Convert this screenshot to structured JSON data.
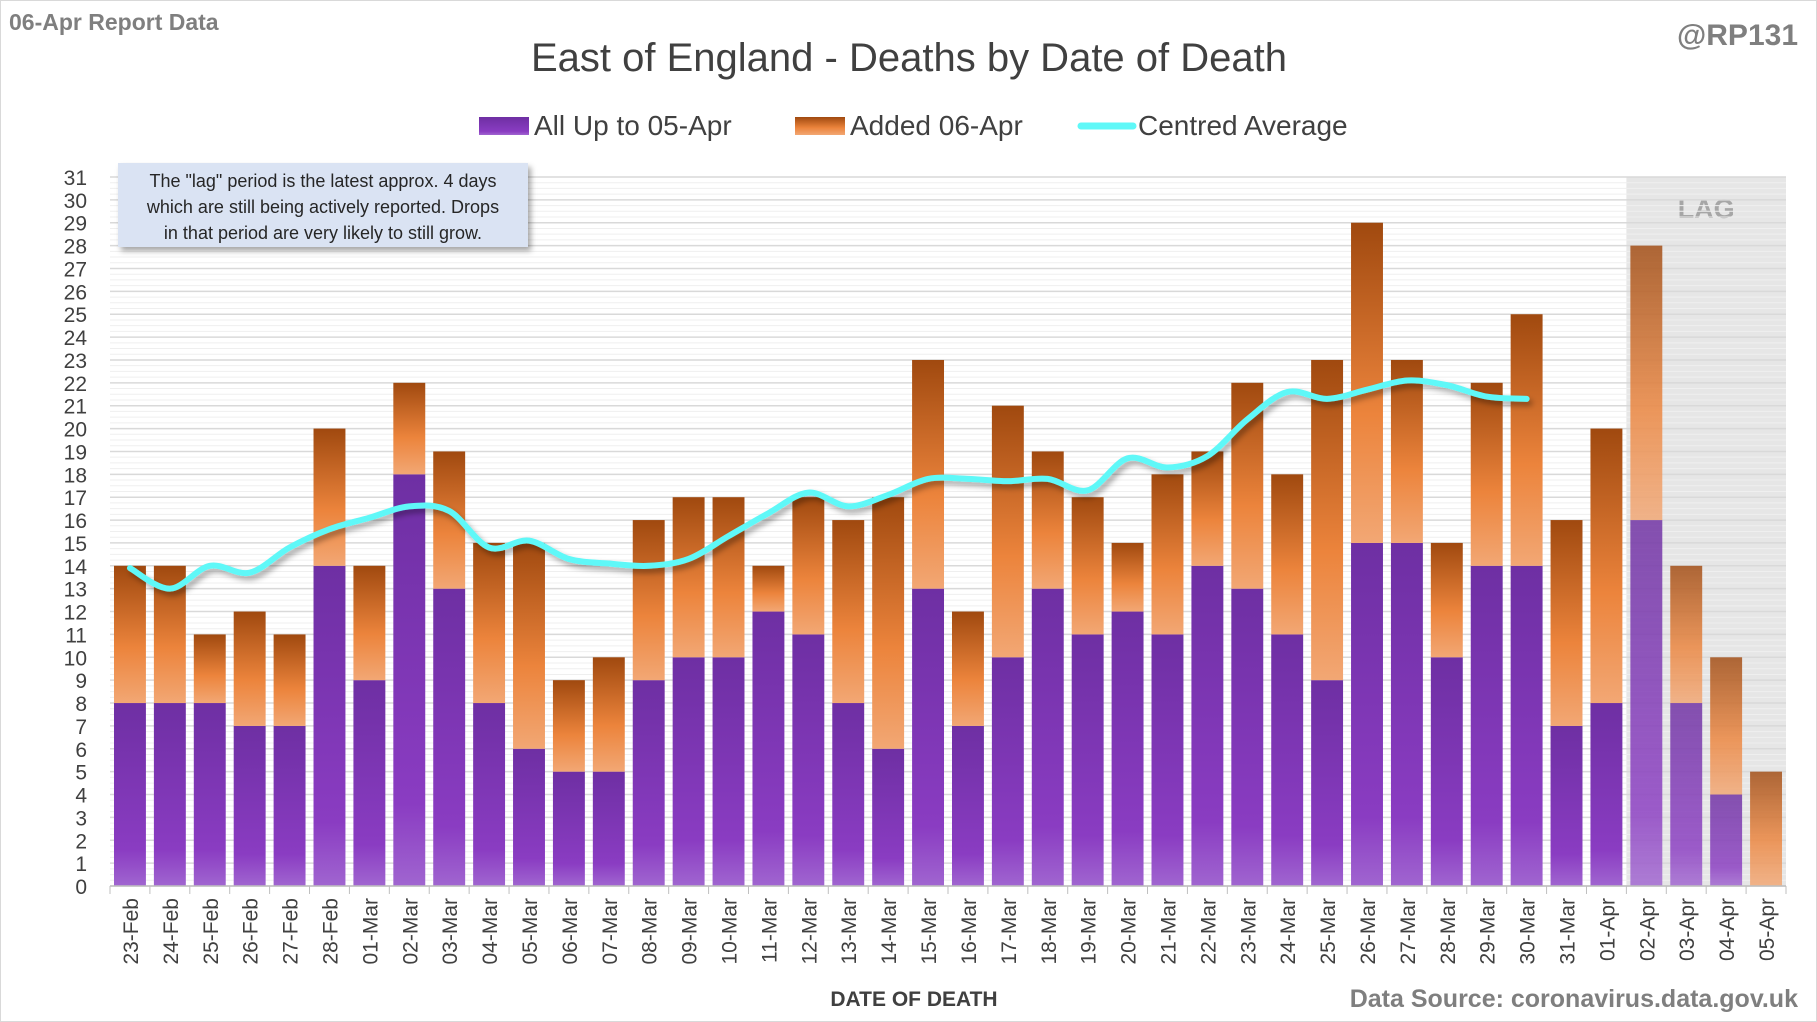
{
  "header": {
    "report_label": "06-Apr Report Data",
    "handle": "@RP131",
    "source": "Data Source: coronavirus.data.gov.uk"
  },
  "annotation": "The \"lag\" period is the latest approx. 4 days which are still being actively reported.  Drops in that period are very likely to still grow.",
  "annotation_lines": [
    "The \"lag\" period is the latest approx. 4 days",
    "which are still being actively reported.  Drops",
    "in that period are very likely to still grow."
  ],
  "lag_label": "LAG",
  "colors": {
    "purple": "#7b35b5",
    "orange": "#e8823a",
    "average": "#5ff8f8",
    "lag_shade": "#e6e6e6"
  },
  "chart_data": {
    "type": "bar",
    "stacked": true,
    "title": "East of England - Deaths by Date of Death",
    "xlabel": "DATE OF DEATH",
    "ylabel": "",
    "ylim": [
      0,
      31
    ],
    "yticks": [
      0,
      1,
      2,
      3,
      4,
      5,
      6,
      7,
      8,
      9,
      10,
      11,
      12,
      13,
      14,
      15,
      16,
      17,
      18,
      19,
      20,
      21,
      22,
      23,
      24,
      25,
      26,
      27,
      28,
      29,
      30,
      31
    ],
    "grid": true,
    "legend_placement": "top",
    "categories": [
      "23-Feb",
      "24-Feb",
      "25-Feb",
      "26-Feb",
      "27-Feb",
      "28-Feb",
      "01-Mar",
      "02-Mar",
      "03-Mar",
      "04-Mar",
      "05-Mar",
      "06-Mar",
      "07-Mar",
      "08-Mar",
      "09-Mar",
      "10-Mar",
      "11-Mar",
      "12-Mar",
      "13-Mar",
      "14-Mar",
      "15-Mar",
      "16-Mar",
      "17-Mar",
      "18-Mar",
      "19-Mar",
      "20-Mar",
      "21-Mar",
      "22-Mar",
      "23-Mar",
      "24-Mar",
      "25-Mar",
      "26-Mar",
      "27-Mar",
      "28-Mar",
      "29-Mar",
      "30-Mar",
      "31-Mar",
      "01-Apr",
      "02-Apr",
      "03-Apr",
      "04-Apr",
      "05-Apr"
    ],
    "lag_start": "02-Apr",
    "series": [
      {
        "name": "All Up to 05-Apr",
        "type": "bar",
        "values": [
          8,
          8,
          8,
          7,
          7,
          14,
          9,
          18,
          13,
          8,
          6,
          5,
          5,
          9,
          10,
          10,
          12,
          11,
          8,
          6,
          13,
          7,
          10,
          13,
          11,
          12,
          11,
          14,
          13,
          11,
          9,
          15,
          15,
          10,
          14,
          14,
          7,
          8,
          16,
          8,
          4,
          0
        ]
      },
      {
        "name": "Added 06-Apr",
        "type": "bar",
        "values": [
          6,
          6,
          3,
          5,
          4,
          6,
          5,
          4,
          6,
          7,
          9,
          4,
          5,
          7,
          7,
          7,
          2,
          6,
          8,
          11,
          10,
          5,
          11,
          6,
          6,
          3,
          7,
          5,
          9,
          7,
          14,
          14,
          8,
          5,
          8,
          11,
          9,
          12,
          12,
          6,
          6,
          5
        ]
      },
      {
        "name": "Centred Average",
        "type": "line",
        "values": [
          13.9,
          13.0,
          14.0,
          13.7,
          14.8,
          15.6,
          16.1,
          16.6,
          16.4,
          14.8,
          15.1,
          14.3,
          14.1,
          14.0,
          14.3,
          15.3,
          16.3,
          17.2,
          16.6,
          17.1,
          17.8,
          17.8,
          17.7,
          17.8,
          17.3,
          18.7,
          18.3,
          18.8,
          20.4,
          21.6,
          21.3,
          21.7,
          22.1,
          21.9,
          21.4,
          21.3,
          null,
          null,
          null,
          null,
          null,
          null
        ]
      }
    ]
  }
}
